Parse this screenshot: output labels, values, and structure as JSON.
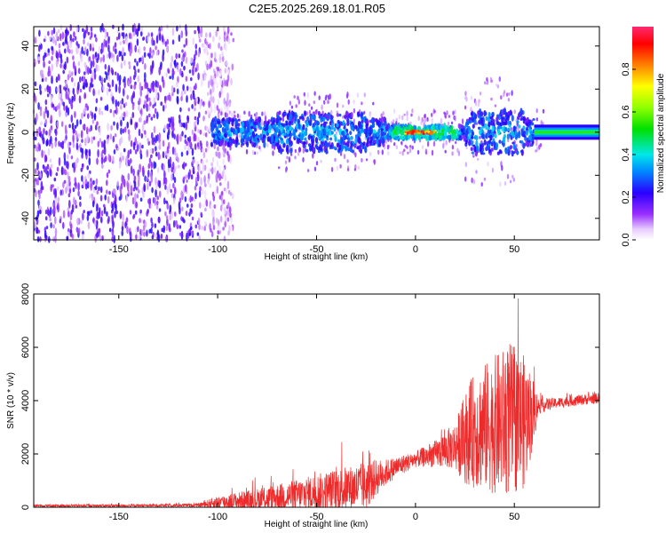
{
  "title": "C2E5.2025.269.18.01.R05",
  "chart_data": [
    {
      "type": "heatmap",
      "title": "C2E5.2025.269.18.01.R05",
      "xlabel": "Height of straight line (km)",
      "ylabel": "Frequency (Hz)",
      "xlim": [
        -193,
        93
      ],
      "ylim": [
        -50,
        49
      ],
      "xticks": [
        -150,
        -100,
        -50,
        0,
        50
      ],
      "yticks": [
        -40,
        -20,
        0,
        20,
        40
      ],
      "colorbar": {
        "label": "Normalized spectral amplitude",
        "range": [
          0,
          1
        ],
        "ticks": [
          0.0,
          0.2,
          0.4,
          0.6,
          0.8
        ],
        "tick_labels": [
          "0.0",
          "0.2",
          "0.4",
          "0.6",
          "0.8"
        ]
      },
      "description_features": {
        "noise_region_x": [
          -193,
          -100
        ],
        "central_band_halfwidth_hz": 3,
        "peak_x": 2,
        "peak_amplitude": 1.0,
        "steady_band_x": [
          60,
          93
        ],
        "steady_band_amplitude": 0.45
      }
    },
    {
      "type": "line",
      "xlabel": "Height of straight line (km)",
      "ylabel": "SNR (10 * v/v)",
      "xlim": [
        -193,
        93
      ],
      "ylim": [
        0,
        8000
      ],
      "xticks": [
        -150,
        -100,
        -50,
        0,
        50
      ],
      "yticks": [
        0,
        2000,
        4000,
        6000,
        8000
      ],
      "series": [
        {
          "name": "SNR",
          "color": "#ee2a2a",
          "envelope": {
            "x": [
              -193,
              -150,
              -110,
              -100,
              -80,
              -60,
              -40,
              -25,
              -20,
              -15,
              -10,
              0,
              10,
              20,
              25,
              30,
              40,
              48,
              55,
              60,
              62,
              70,
              80,
              93
            ],
            "mean": [
              60,
              60,
              80,
              180,
              300,
              450,
              650,
              800,
              1100,
              1300,
              1500,
              1800,
              2000,
              2300,
              2600,
              2900,
              3100,
              3300,
              3200,
              3600,
              3800,
              3900,
              4000,
              4100
            ],
            "spread": [
              50,
              50,
              60,
              250,
              400,
              600,
              800,
              900,
              700,
              500,
              400,
              300,
              500,
              900,
              1700,
              2200,
              2600,
              2900,
              2500,
              1200,
              300,
              200,
              200,
              200
            ]
          }
        }
      ]
    }
  ]
}
